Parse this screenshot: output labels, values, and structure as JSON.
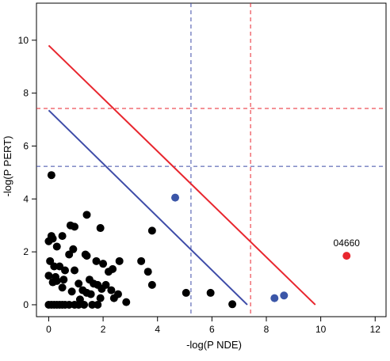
{
  "chart_data": {
    "type": "scatter",
    "title": "",
    "xlabel": "-log(P NDE)",
    "ylabel": "-log(P PERT)",
    "xlim": [
      -0.45,
      12.4
    ],
    "ylim": [
      -0.45,
      11.4
    ],
    "xticks": [
      0,
      2,
      4,
      6,
      8,
      10,
      12
    ],
    "yticks": [
      0,
      2,
      4,
      6,
      8,
      10
    ],
    "grid": false,
    "colors": {
      "black": "#000000",
      "blue": "#3b56a8",
      "red": "#e8262e",
      "blue_line": "#3e4ca8",
      "red_line": "#e8262e"
    },
    "threshold_lines": {
      "blue_vertical_x": 5.23,
      "blue_horizontal_y": 5.23,
      "red_vertical_x": 7.42,
      "red_horizontal_y": 7.42
    },
    "diagonal_lines": [
      {
        "color": "blue",
        "from": [
          0,
          7.35
        ],
        "to": [
          7.3,
          0
        ]
      },
      {
        "color": "red",
        "from": [
          0,
          9.8
        ],
        "to": [
          9.8,
          0
        ]
      }
    ],
    "series": [
      {
        "color": "black",
        "points": [
          [
            0.1,
            4.9
          ],
          [
            0.0,
            2.4
          ],
          [
            0.1,
            2.6
          ],
          [
            0.15,
            2.5
          ],
          [
            0.5,
            2.6
          ],
          [
            0.8,
            3.0
          ],
          [
            0.95,
            2.95
          ],
          [
            1.4,
            3.4
          ],
          [
            1.9,
            2.9
          ],
          [
            3.8,
            2.8
          ],
          [
            0.3,
            2.2
          ],
          [
            0.9,
            2.1
          ],
          [
            0.75,
            1.9
          ],
          [
            1.35,
            1.9
          ],
          [
            1.4,
            1.85
          ],
          [
            0.2,
            1.45
          ],
          [
            0.4,
            1.45
          ],
          [
            0.05,
            1.65
          ],
          [
            0.6,
            1.3
          ],
          [
            0.0,
            1.1
          ],
          [
            0.25,
            1.05
          ],
          [
            0.95,
            1.3
          ],
          [
            1.75,
            1.65
          ],
          [
            2.0,
            1.55
          ],
          [
            2.6,
            1.65
          ],
          [
            2.35,
            1.35
          ],
          [
            2.2,
            1.25
          ],
          [
            0.3,
            0.9
          ],
          [
            0.55,
            0.95
          ],
          [
            0.15,
            0.85
          ],
          [
            1.1,
            0.8
          ],
          [
            1.25,
            0.55
          ],
          [
            1.5,
            0.95
          ],
          [
            1.65,
            0.8
          ],
          [
            1.8,
            0.75
          ],
          [
            2.1,
            0.75
          ],
          [
            2.3,
            0.55
          ],
          [
            1.4,
            0.45
          ],
          [
            1.55,
            0.4
          ],
          [
            1.95,
            0.6
          ],
          [
            2.55,
            0.4
          ],
          [
            0.5,
            0.65
          ],
          [
            0.85,
            0.5
          ],
          [
            1.15,
            0.2
          ],
          [
            1.9,
            0.25
          ],
          [
            2.4,
            0.25
          ],
          [
            2.85,
            0.1
          ],
          [
            3.4,
            1.65
          ],
          [
            3.65,
            1.25
          ],
          [
            3.8,
            0.75
          ],
          [
            5.05,
            0.45
          ],
          [
            5.95,
            0.45
          ],
          [
            6.75,
            0.02
          ],
          [
            0.0,
            0.0
          ],
          [
            0.1,
            0.0
          ],
          [
            0.2,
            0.0
          ],
          [
            0.3,
            0.0
          ],
          [
            0.4,
            0.0
          ],
          [
            0.5,
            0.0
          ],
          [
            0.6,
            0.0
          ],
          [
            0.75,
            0.0
          ],
          [
            0.95,
            0.0
          ],
          [
            1.1,
            0.0
          ],
          [
            1.3,
            0.0
          ],
          [
            1.6,
            0.0
          ],
          [
            1.8,
            0.0
          ]
        ]
      },
      {
        "color": "blue",
        "points": [
          [
            4.65,
            4.05
          ],
          [
            8.3,
            0.25
          ],
          [
            8.65,
            0.35
          ]
        ]
      },
      {
        "color": "red",
        "points": [
          [
            10.95,
            1.85
          ]
        ]
      }
    ],
    "annotations": [
      {
        "text": "04660",
        "x": 10.95,
        "y": 1.85
      }
    ]
  }
}
